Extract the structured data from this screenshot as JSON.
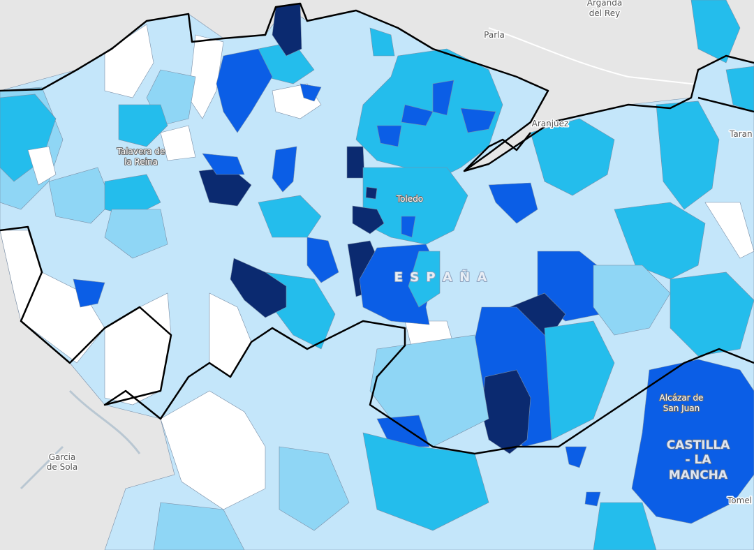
{
  "labels": [
    {
      "lines": [
        "Arganda",
        "del Rey"
      ]
    },
    {
      "lines": [
        "Parla"
      ]
    },
    {
      "lines": [
        "Aranjuez"
      ]
    },
    {
      "lines": [
        "Taran"
      ]
    },
    {
      "lines": [
        "Talavera de",
        "la Reina"
      ]
    },
    {
      "lines": [
        "Toledo"
      ]
    },
    {
      "lines": [
        "E S P A Ñ A"
      ]
    },
    {
      "lines": [
        "Alcázar de",
        "San Juan"
      ]
    },
    {
      "lines": [
        "CASTILLA",
        "- LA",
        "MANCHA"
      ]
    },
    {
      "lines": [
        "Garcia",
        "de Sola"
      ]
    },
    {
      "lines": [
        "Tomel"
      ]
    }
  ]
}
